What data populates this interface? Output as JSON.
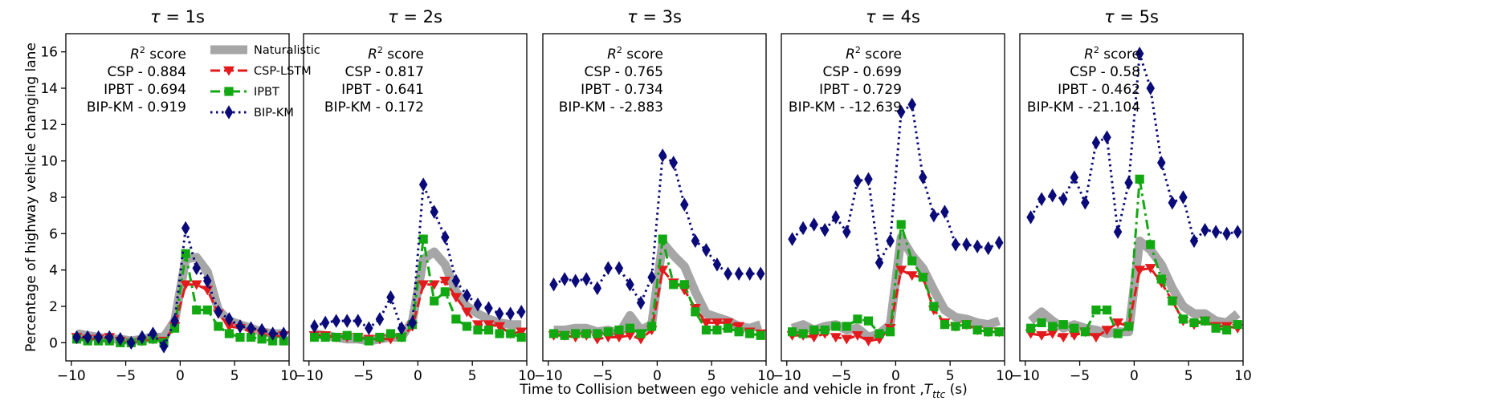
{
  "chart_data": {
    "type": "line",
    "ylabel": "Percentage of highway vehicle changing lane",
    "xlabel": "Time to Collision between ego vehicle and vehicle in front ,",
    "xlabel_symbol": "T",
    "xlabel_subscript": "ttc",
    "xlabel_unit": " (s)",
    "xlim": [
      -10.5,
      10
    ],
    "ylim": [
      -1,
      17
    ],
    "xticks": [
      -10,
      -5,
      0,
      5,
      10
    ],
    "xtick_labels": [
      "−10",
      "−5",
      "0",
      "5",
      "10"
    ],
    "yticks": [
      0,
      2,
      4,
      6,
      8,
      10,
      12,
      14,
      16
    ],
    "x": [
      -9.5,
      -8.5,
      -7.5,
      -6.5,
      -5.5,
      -4.5,
      -3.5,
      -2.5,
      -1.5,
      -0.5,
      0.5,
      1.5,
      2.5,
      3.5,
      4.5,
      5.5,
      6.5,
      7.5,
      8.5,
      9.5
    ],
    "styles": {
      "Naturalistic": {
        "color": "#a6a6a6",
        "width": 11,
        "dash": "",
        "marker": "none"
      },
      "CSP-LSTM": {
        "color": "#e31a1c",
        "width": 3,
        "dash": "12 5",
        "marker": "triangle-down"
      },
      "IPBT": {
        "color": "#12a812",
        "width": 3,
        "dash": "12 5 3 5",
        "marker": "square"
      },
      "BIP-KM": {
        "color": "#0a0a78",
        "width": 3,
        "dash": "2.5 4.5",
        "marker": "diamond"
      }
    },
    "legend": {
      "placement": "top-right of first panel",
      "entries": [
        "Naturalistic",
        "CSP-LSTM",
        "IPBT",
        "BIP-KM"
      ]
    },
    "panels": [
      {
        "title_symbol": "τ",
        "title_value": " = 1s",
        "score_heading_symbol": "R",
        "score_heading_rest": " score",
        "scores": [
          "CSP - 0.884",
          "IPBT - 0.694",
          "BIP-KM - 0.919"
        ],
        "series": [
          {
            "name": "Naturalistic",
            "values": [
              0.5,
              0.4,
              0.3,
              0.2,
              0.2,
              0.1,
              0.2,
              0.3,
              0.3,
              1.2,
              4.6,
              4.7,
              3.9,
              1.8,
              1.2,
              1.0,
              0.8,
              0.6,
              0.5,
              0.5
            ]
          },
          {
            "name": "CSP-LSTM",
            "values": [
              0.3,
              0.2,
              0.2,
              0.3,
              0.1,
              0.0,
              0.1,
              0.2,
              0.1,
              0.9,
              3.2,
              3.2,
              2.9,
              1.6,
              0.9,
              0.8,
              0.6,
              0.5,
              0.3,
              0.4
            ]
          },
          {
            "name": "IPBT",
            "values": [
              0.2,
              0.1,
              0.1,
              0.1,
              0.0,
              0.0,
              0.1,
              0.2,
              0.0,
              0.8,
              4.9,
              1.8,
              1.8,
              0.9,
              0.5,
              0.3,
              0.3,
              0.2,
              0.1,
              0.1
            ]
          },
          {
            "name": "BIP-KM",
            "values": [
              0.3,
              0.3,
              0.3,
              0.3,
              0.2,
              0.0,
              0.3,
              0.5,
              -0.2,
              1.2,
              6.3,
              4.1,
              3.4,
              1.7,
              1.3,
              0.9,
              0.8,
              0.7,
              0.5,
              0.5
            ]
          }
        ]
      },
      {
        "title_symbol": "τ",
        "title_value": " = 2s",
        "score_heading_symbol": "R",
        "score_heading_rest": " score",
        "scores": [
          "CSP - 0.817",
          "IPBT - 0.641",
          "BIP-KM - 0.172"
        ],
        "series": [
          {
            "name": "Naturalistic",
            "values": [
              0.5,
              0.4,
              0.3,
              0.2,
              0.2,
              0.1,
              0.2,
              0.3,
              0.3,
              1.2,
              4.6,
              5.0,
              4.3,
              2.8,
              2.0,
              1.6,
              1.3,
              1.1,
              1.0,
              1.0
            ]
          },
          {
            "name": "CSP-LSTM",
            "values": [
              0.4,
              0.4,
              0.3,
              0.3,
              0.3,
              0.2,
              0.2,
              0.2,
              0.3,
              0.9,
              3.2,
              3.2,
              3.4,
              2.5,
              1.7,
              1.0,
              1.0,
              0.9,
              0.5,
              0.6
            ]
          },
          {
            "name": "IPBT",
            "values": [
              0.3,
              0.3,
              0.3,
              0.4,
              0.3,
              0.1,
              0.3,
              0.5,
              0.3,
              1.0,
              5.7,
              2.3,
              2.8,
              1.3,
              0.9,
              0.7,
              0.7,
              0.5,
              0.5,
              0.3
            ]
          },
          {
            "name": "BIP-KM",
            "values": [
              0.9,
              1.1,
              1.2,
              1.2,
              1.2,
              0.8,
              1.3,
              2.5,
              0.8,
              1.1,
              8.7,
              7.2,
              5.8,
              3.4,
              2.6,
              2.1,
              1.9,
              1.6,
              1.6,
              1.7
            ]
          }
        ]
      },
      {
        "title_symbol": "τ",
        "title_value": " = 3s",
        "score_heading_symbol": "R",
        "score_heading_rest": " score",
        "scores": [
          "CSP - 0.765",
          "IPBT - 0.734",
          "BIP-KM - -2.883"
        ],
        "series": [
          {
            "name": "Naturalistic",
            "values": [
              0.7,
              0.7,
              0.8,
              0.8,
              0.6,
              0.7,
              0.5,
              1.5,
              0.7,
              1.0,
              5.5,
              4.8,
              4.2,
              2.8,
              1.6,
              1.4,
              1.2,
              0.9,
              0.8,
              1.0
            ]
          },
          {
            "name": "CSP-LSTM",
            "values": [
              0.4,
              0.4,
              0.3,
              0.4,
              0.2,
              0.3,
              0.3,
              0.4,
              0.2,
              0.7,
              4.0,
              3.3,
              2.9,
              1.9,
              1.1,
              1.1,
              1.1,
              0.9,
              0.6,
              0.5
            ]
          },
          {
            "name": "IPBT",
            "values": [
              0.5,
              0.4,
              0.5,
              0.5,
              0.5,
              0.6,
              0.7,
              0.8,
              0.5,
              0.9,
              5.7,
              3.2,
              3.2,
              1.7,
              0.7,
              0.7,
              0.8,
              0.6,
              0.5,
              0.4
            ]
          },
          {
            "name": "BIP-KM",
            "values": [
              3.2,
              3.5,
              3.4,
              3.5,
              3.0,
              4.1,
              4.1,
              3.2,
              2.2,
              3.6,
              10.3,
              9.9,
              7.6,
              5.6,
              5.1,
              4.3,
              3.8,
              3.8,
              3.8,
              3.8
            ]
          }
        ]
      },
      {
        "title_symbol": "τ",
        "title_value": " = 4s",
        "score_heading_symbol": "R",
        "score_heading_rest": " score",
        "scores": [
          "CSP - 0.699",
          "IPBT - 0.729",
          "BIP-KM - -12.639"
        ],
        "series": [
          {
            "name": "Naturalistic",
            "values": [
              0.8,
              1.0,
              0.7,
              0.9,
              1.0,
              0.7,
              0.8,
              0.3,
              0.5,
              1.0,
              5.8,
              4.8,
              4.1,
              2.9,
              1.8,
              1.4,
              1.3,
              1.1,
              1.0,
              1.2
            ]
          },
          {
            "name": "CSP-LSTM",
            "values": [
              0.4,
              0.4,
              0.3,
              0.5,
              0.3,
              0.2,
              0.4,
              0.1,
              0.2,
              0.8,
              4.0,
              3.7,
              3.6,
              1.8,
              1.1,
              0.9,
              1.0,
              0.7,
              0.6,
              0.6
            ]
          },
          {
            "name": "IPBT",
            "values": [
              0.6,
              0.5,
              0.7,
              0.7,
              0.9,
              0.9,
              1.3,
              1.2,
              0.5,
              0.6,
              6.5,
              4.5,
              3.6,
              2.0,
              1.0,
              0.9,
              1.0,
              0.7,
              0.6,
              0.6
            ]
          },
          {
            "name": "BIP-KM",
            "values": [
              5.7,
              6.3,
              6.5,
              6.2,
              6.9,
              6.1,
              8.9,
              9.0,
              4.4,
              5.6,
              12.7,
              13.1,
              9.1,
              7.0,
              7.2,
              5.4,
              5.4,
              5.3,
              5.2,
              5.5
            ]
          }
        ]
      },
      {
        "title_symbol": "τ",
        "title_value": " = 5s",
        "score_heading_symbol": "R",
        "score_heading_rest": " score",
        "scores": [
          "CSP - 0.58",
          "IPBT - 0.462",
          "BIP-KM - -21.104"
        ],
        "series": [
          {
            "name": "Naturalistic",
            "values": [
              1.2,
              1.7,
              1.2,
              0.8,
              1.0,
              0.8,
              0.7,
              0.5,
              0.6,
              0.6,
              5.6,
              5.1,
              4.3,
              3.0,
              2.0,
              1.6,
              1.6,
              1.2,
              1.1,
              1.6
            ]
          },
          {
            "name": "CSP-LSTM",
            "values": [
              0.5,
              0.4,
              0.5,
              0.3,
              0.4,
              0.6,
              0.3,
              0.7,
              1.1,
              0.9,
              4.0,
              4.1,
              3.3,
              2.3,
              1.2,
              1.0,
              1.2,
              0.9,
              0.9,
              0.8
            ]
          },
          {
            "name": "IPBT",
            "values": [
              0.8,
              1.1,
              0.9,
              1.0,
              0.8,
              0.6,
              1.8,
              1.8,
              0.5,
              0.9,
              9.0,
              5.4,
              3.5,
              2.3,
              1.3,
              1.1,
              1.2,
              0.8,
              0.7,
              1.0
            ]
          },
          {
            "name": "BIP-KM",
            "values": [
              6.9,
              7.9,
              8.1,
              7.9,
              9.1,
              7.7,
              11.0,
              11.3,
              6.1,
              8.8,
              15.9,
              14.0,
              9.9,
              7.7,
              8.0,
              5.6,
              6.2,
              6.1,
              6.0,
              6.1
            ]
          }
        ]
      }
    ]
  }
}
